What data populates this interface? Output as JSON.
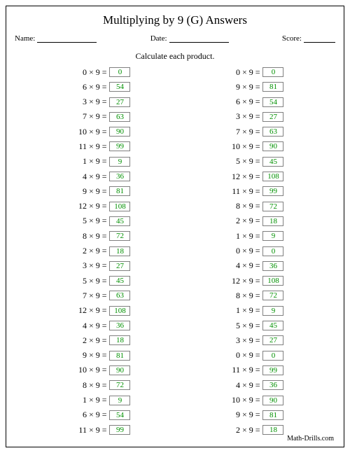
{
  "title": "Multiplying by 9 (G) Answers",
  "labels": {
    "name": "Name:",
    "date": "Date:",
    "score": "Score:"
  },
  "instruction": "Calculate each product.",
  "footer": "Math-Drills.com",
  "answer_color": "#009000",
  "border_color": "#808080",
  "col1": [
    {
      "a": 0,
      "b": 9,
      "ans": 0
    },
    {
      "a": 6,
      "b": 9,
      "ans": 54
    },
    {
      "a": 3,
      "b": 9,
      "ans": 27
    },
    {
      "a": 7,
      "b": 9,
      "ans": 63
    },
    {
      "a": 10,
      "b": 9,
      "ans": 90
    },
    {
      "a": 11,
      "b": 9,
      "ans": 99
    },
    {
      "a": 1,
      "b": 9,
      "ans": 9
    },
    {
      "a": 4,
      "b": 9,
      "ans": 36
    },
    {
      "a": 9,
      "b": 9,
      "ans": 81
    },
    {
      "a": 12,
      "b": 9,
      "ans": 108
    },
    {
      "a": 5,
      "b": 9,
      "ans": 45
    },
    {
      "a": 8,
      "b": 9,
      "ans": 72
    },
    {
      "a": 2,
      "b": 9,
      "ans": 18
    },
    {
      "a": 3,
      "b": 9,
      "ans": 27
    },
    {
      "a": 5,
      "b": 9,
      "ans": 45
    },
    {
      "a": 7,
      "b": 9,
      "ans": 63
    },
    {
      "a": 12,
      "b": 9,
      "ans": 108
    },
    {
      "a": 4,
      "b": 9,
      "ans": 36
    },
    {
      "a": 2,
      "b": 9,
      "ans": 18
    },
    {
      "a": 9,
      "b": 9,
      "ans": 81
    },
    {
      "a": 10,
      "b": 9,
      "ans": 90
    },
    {
      "a": 8,
      "b": 9,
      "ans": 72
    },
    {
      "a": 1,
      "b": 9,
      "ans": 9
    },
    {
      "a": 6,
      "b": 9,
      "ans": 54
    },
    {
      "a": 11,
      "b": 9,
      "ans": 99
    }
  ],
  "col2": [
    {
      "a": 0,
      "b": 9,
      "ans": 0
    },
    {
      "a": 9,
      "b": 9,
      "ans": 81
    },
    {
      "a": 6,
      "b": 9,
      "ans": 54
    },
    {
      "a": 3,
      "b": 9,
      "ans": 27
    },
    {
      "a": 7,
      "b": 9,
      "ans": 63
    },
    {
      "a": 10,
      "b": 9,
      "ans": 90
    },
    {
      "a": 5,
      "b": 9,
      "ans": 45
    },
    {
      "a": 12,
      "b": 9,
      "ans": 108
    },
    {
      "a": 11,
      "b": 9,
      "ans": 99
    },
    {
      "a": 8,
      "b": 9,
      "ans": 72
    },
    {
      "a": 2,
      "b": 9,
      "ans": 18
    },
    {
      "a": 1,
      "b": 9,
      "ans": 9
    },
    {
      "a": 0,
      "b": 9,
      "ans": 0
    },
    {
      "a": 4,
      "b": 9,
      "ans": 36
    },
    {
      "a": 12,
      "b": 9,
      "ans": 108
    },
    {
      "a": 8,
      "b": 9,
      "ans": 72
    },
    {
      "a": 1,
      "b": 9,
      "ans": 9
    },
    {
      "a": 5,
      "b": 9,
      "ans": 45
    },
    {
      "a": 3,
      "b": 9,
      "ans": 27
    },
    {
      "a": 0,
      "b": 9,
      "ans": 0
    },
    {
      "a": 11,
      "b": 9,
      "ans": 99
    },
    {
      "a": 4,
      "b": 9,
      "ans": 36
    },
    {
      "a": 10,
      "b": 9,
      "ans": 90
    },
    {
      "a": 9,
      "b": 9,
      "ans": 81
    },
    {
      "a": 2,
      "b": 9,
      "ans": 18
    }
  ]
}
